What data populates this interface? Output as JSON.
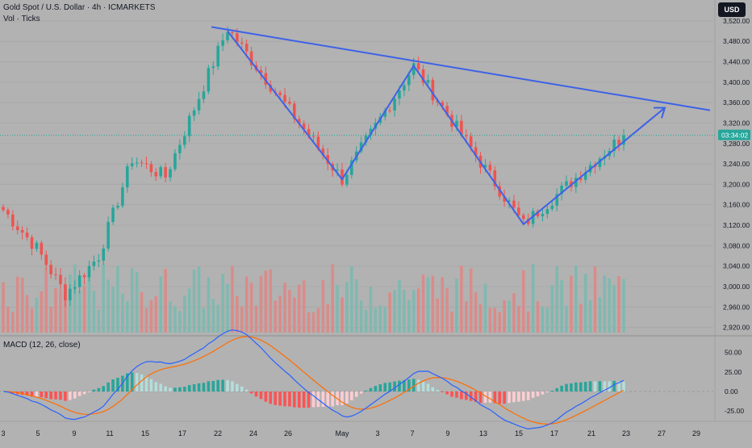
{
  "header": {
    "title": "Gold Spot / U.S. Dollar · 4h · ICMARKETS",
    "volume_label": "Vol · Ticks",
    "currency": "USD"
  },
  "macd": {
    "label": "MACD (12, 26, close)",
    "ticks": [
      "50.00",
      "25.00",
      "0.00",
      "-25.00"
    ],
    "tick_values": [
      50,
      25,
      0,
      -25
    ]
  },
  "price_badge": {
    "text": "03:34:02",
    "value": 3296
  },
  "colors": {
    "up": "#26a69a",
    "down": "#ef5350",
    "vol_up": "#7fb9b0",
    "vol_down": "#d98c8a",
    "trendline": "#3d62e8",
    "macd_line": "#2962ff",
    "signal_line": "#ff6d00",
    "hist_up_strong": "#26a69a",
    "hist_up_weak": "#b2dfdb",
    "hist_down_strong": "#ff5252",
    "hist_down_weak": "#ffcdd2"
  },
  "chart_data": {
    "type": "candlestick",
    "y_ticks": [
      "3,520.00",
      "3,480.00",
      "3,440.00",
      "3,400.00",
      "3,360.00",
      "3,320.00",
      "3,280.00",
      "3,240.00",
      "3,200.00",
      "3,160.00",
      "3,120.00",
      "3,080.00",
      "3,040.00",
      "3,000.00",
      "2,960.00",
      "2,920.00"
    ],
    "y_tick_values": [
      3520,
      3480,
      3440,
      3400,
      3360,
      3320,
      3280,
      3240,
      3200,
      3160,
      3120,
      3080,
      3040,
      3000,
      2960,
      2920
    ],
    "x_ticks": [
      "3",
      "5",
      "9",
      "11",
      "15",
      "17",
      "22",
      "24",
      "26",
      "May",
      "3",
      "7",
      "9",
      "13",
      "15",
      "17",
      "21",
      "23",
      "27",
      "29"
    ],
    "ylim": [
      2910,
      3545
    ],
    "pattern_points": [
      {
        "label": "",
        "price": 3505
      },
      {
        "label": "",
        "price": 3500
      },
      {
        "label": "",
        "price": 3210
      },
      {
        "label": "",
        "price": 3432
      },
      {
        "label": "",
        "price": 3122
      },
      {
        "label": "",
        "price": 3350
      }
    ]
  }
}
